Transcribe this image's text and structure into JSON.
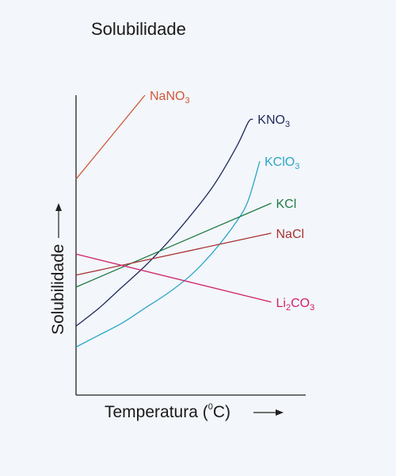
{
  "title": "Solubilidade",
  "chart_data": {
    "type": "line",
    "title": "Solubilidade",
    "xlabel": "Temperatura (°C)",
    "xlabel_text": "Temperatura (",
    "xlabel_unit_sup": "0",
    "xlabel_unit_main": "C)",
    "ylabel": "Solubilidade",
    "xlim": [
      0,
      100
    ],
    "ylim": [
      0,
      100
    ],
    "grid": false,
    "ticks": false,
    "series": [
      {
        "name": "NaNO3",
        "base": "NaNO",
        "sub": "3",
        "sub_pos": "end",
        "color": "#d0583a",
        "x": [
          0,
          30
        ],
        "y": [
          72,
          100
        ]
      },
      {
        "name": "KNO3",
        "base": "KNO",
        "sub": "3",
        "sub_pos": "end",
        "color": "#1f2a5e",
        "x": [
          0,
          10,
          20,
          30,
          40,
          50,
          60,
          70,
          75,
          77
        ],
        "y": [
          23,
          29,
          36,
          43,
          51,
          60,
          70,
          83,
          91,
          92
        ]
      },
      {
        "name": "KClO3",
        "base": "KClO",
        "sub": "3",
        "sub_pos": "end",
        "color": "#2aa6c8",
        "x": [
          0,
          10,
          20,
          30,
          40,
          50,
          60,
          70,
          75,
          80
        ],
        "y": [
          16,
          20,
          24,
          29,
          34,
          40,
          48,
          58,
          65,
          78
        ]
      },
      {
        "name": "KCl",
        "base": "KCl",
        "sub": "",
        "sub_pos": "end",
        "color": "#1f7a45",
        "x": [
          0,
          85
        ],
        "y": [
          36,
          64
        ]
      },
      {
        "name": "NaCl",
        "base": "NaCl",
        "sub": "",
        "sub_pos": "end",
        "color": "#a83232",
        "x": [
          0,
          85
        ],
        "y": [
          40,
          54
        ]
      },
      {
        "name": "Li2CO3",
        "base": "Li",
        "sub": "2",
        "tail": "CO",
        "tail_sub": "3",
        "sub_pos": "mid",
        "color": "#d0226e",
        "x": [
          0,
          85
        ],
        "y": [
          47,
          31
        ]
      }
    ]
  }
}
